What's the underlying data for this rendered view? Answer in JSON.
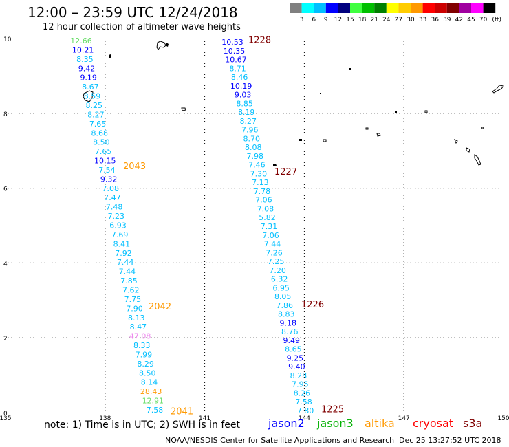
{
  "header": {
    "title": "12:00 – 23:59 UTC 12/24/2018",
    "subtitle": "12 hour collection of altimeter wave heights"
  },
  "color_scale": {
    "unit_label": "(ft)",
    "bins": [
      {
        "label": "",
        "color": "#808080"
      },
      {
        "label": "3",
        "color": "#00ffff"
      },
      {
        "label": "6",
        "color": "#00bfff"
      },
      {
        "label": "9",
        "color": "#0000ff"
      },
      {
        "label": "12",
        "color": "#00007f"
      },
      {
        "label": "15",
        "color": "#40ff40"
      },
      {
        "label": "18",
        "color": "#00c000"
      },
      {
        "label": "21",
        "color": "#008000"
      },
      {
        "label": "24",
        "color": "#ffff00"
      },
      {
        "label": "27",
        "color": "#ffcc00"
      },
      {
        "label": "30",
        "color": "#ff9900"
      },
      {
        "label": "33",
        "color": "#ff0000"
      },
      {
        "label": "36",
        "color": "#cc0000"
      },
      {
        "label": "39",
        "color": "#800000"
      },
      {
        "label": "42",
        "color": "#a000a0"
      },
      {
        "label": "45",
        "color": "#ff00ff"
      },
      {
        "label": "70",
        "color": "#000000"
      }
    ]
  },
  "axes": {
    "lon_ticks": [
      "135",
      "138",
      "141",
      "144",
      "147",
      "150"
    ],
    "lat_ticks": [
      "0",
      "2",
      "4",
      "6",
      "8",
      "10"
    ]
  },
  "tracks": [
    {
      "pass_times": [
        {
          "label": "2043",
          "lat": 6.6,
          "color": "#ff9900"
        },
        {
          "label": "2042",
          "lat": 2.85,
          "color": "#ff9900"
        },
        {
          "label": "2041",
          "lat": 0.05,
          "color": "#ff9900"
        }
      ],
      "points": [
        {
          "v": "12.66",
          "c": "#66dd66"
        },
        {
          "v": "10.21",
          "c": "#0000ff"
        },
        {
          "v": "8.35",
          "c": "#00bfff"
        },
        {
          "v": "9.42",
          "c": "#0000ff"
        },
        {
          "v": "9.19",
          "c": "#0000ff"
        },
        {
          "v": "8.67",
          "c": "#00bfff"
        },
        {
          "v": "8.59",
          "c": "#00bfff"
        },
        {
          "v": "8.25",
          "c": "#00bfff"
        },
        {
          "v": "8.27",
          "c": "#00bfff"
        },
        {
          "v": "7.65",
          "c": "#00bfff"
        },
        {
          "v": "8.68",
          "c": "#00bfff"
        },
        {
          "v": "8.50",
          "c": "#00bfff"
        },
        {
          "v": "7.65",
          "c": "#00bfff"
        },
        {
          "v": "10.15",
          "c": "#0000ff"
        },
        {
          "v": "7.54",
          "c": "#00bfff"
        },
        {
          "v": "9.32",
          "c": "#0000ff"
        },
        {
          "v": "7.08",
          "c": "#00bfff"
        },
        {
          "v": "7.47",
          "c": "#00bfff"
        },
        {
          "v": "7.48",
          "c": "#00bfff"
        },
        {
          "v": "7.23",
          "c": "#00bfff"
        },
        {
          "v": "6.93",
          "c": "#00bfff"
        },
        {
          "v": "7.69",
          "c": "#00bfff"
        },
        {
          "v": "8.41",
          "c": "#00bfff"
        },
        {
          "v": "7.92",
          "c": "#00bfff"
        },
        {
          "v": "7.44",
          "c": "#00bfff"
        },
        {
          "v": "7.44",
          "c": "#00bfff"
        },
        {
          "v": "7.85",
          "c": "#00bfff"
        },
        {
          "v": "7.62",
          "c": "#00bfff"
        },
        {
          "v": "7.75",
          "c": "#00bfff"
        },
        {
          "v": "7.90",
          "c": "#00bfff"
        },
        {
          "v": "8.13",
          "c": "#00bfff"
        },
        {
          "v": "8.47",
          "c": "#00bfff"
        },
        {
          "v": "47.08",
          "c": "#ee88ee"
        },
        {
          "v": "8.33",
          "c": "#00bfff"
        },
        {
          "v": "7.99",
          "c": "#00bfff"
        },
        {
          "v": "8.29",
          "c": "#00bfff"
        },
        {
          "v": "8.50",
          "c": "#00bfff"
        },
        {
          "v": "8.14",
          "c": "#00bfff"
        },
        {
          "v": "28.43",
          "c": "#ff9900"
        },
        {
          "v": "12.91",
          "c": "#66dd66"
        },
        {
          "v": "7.58",
          "c": "#00bfff"
        }
      ]
    },
    {
      "pass_times": [
        {
          "label": "1228",
          "lat": 9.97,
          "color": "#800000"
        },
        {
          "label": "1227",
          "lat": 6.45,
          "color": "#800000"
        },
        {
          "label": "1226",
          "lat": 2.9,
          "color": "#800000"
        },
        {
          "label": "1225",
          "lat": 0.1,
          "color": "#800000"
        }
      ],
      "points": [
        {
          "v": "10.53",
          "c": "#0000ff"
        },
        {
          "v": "10.35",
          "c": "#0000ff"
        },
        {
          "v": "10.67",
          "c": "#0000ff"
        },
        {
          "v": "8.71",
          "c": "#00bfff"
        },
        {
          "v": "8.46",
          "c": "#00bfff"
        },
        {
          "v": "10.19",
          "c": "#0000ff"
        },
        {
          "v": "9.03",
          "c": "#0000ff"
        },
        {
          "v": "8.85",
          "c": "#00bfff"
        },
        {
          "v": "8.19",
          "c": "#00bfff"
        },
        {
          "v": "8.27",
          "c": "#00bfff"
        },
        {
          "v": "7.96",
          "c": "#00bfff"
        },
        {
          "v": "8.70",
          "c": "#00bfff"
        },
        {
          "v": "8.08",
          "c": "#00bfff"
        },
        {
          "v": "7.98",
          "c": "#00bfff"
        },
        {
          "v": "7.46",
          "c": "#00bfff"
        },
        {
          "v": "7.30",
          "c": "#00bfff"
        },
        {
          "v": "7.13",
          "c": "#00bfff"
        },
        {
          "v": "7.78",
          "c": "#00bfff"
        },
        {
          "v": "7.06",
          "c": "#00bfff"
        },
        {
          "v": "7.08",
          "c": "#00bfff"
        },
        {
          "v": "5.82",
          "c": "#00bfff"
        },
        {
          "v": "7.31",
          "c": "#00bfff"
        },
        {
          "v": "7.06",
          "c": "#00bfff"
        },
        {
          "v": "7.44",
          "c": "#00bfff"
        },
        {
          "v": "7.26",
          "c": "#00bfff"
        },
        {
          "v": "7.25",
          "c": "#00bfff"
        },
        {
          "v": "7.20",
          "c": "#00bfff"
        },
        {
          "v": "6.32",
          "c": "#00bfff"
        },
        {
          "v": "6.95",
          "c": "#00bfff"
        },
        {
          "v": "8.05",
          "c": "#00bfff"
        },
        {
          "v": "7.86",
          "c": "#00bfff"
        },
        {
          "v": "8.83",
          "c": "#00bfff"
        },
        {
          "v": "9.18",
          "c": "#0000ff"
        },
        {
          "v": "8.76",
          "c": "#00bfff"
        },
        {
          "v": "9.49",
          "c": "#0000ff"
        },
        {
          "v": "8.65",
          "c": "#00bfff"
        },
        {
          "v": "9.25",
          "c": "#0000ff"
        },
        {
          "v": "9.40",
          "c": "#0000ff"
        },
        {
          "v": "8.28",
          "c": "#00bfff"
        },
        {
          "v": "7.95",
          "c": "#00bfff"
        },
        {
          "v": "8.26",
          "c": "#00bfff"
        },
        {
          "v": "7.58",
          "c": "#00bfff"
        },
        {
          "v": "7.80",
          "c": "#00bfff"
        }
      ]
    }
  ],
  "footer": {
    "note": "note: 1) Time is in UTC; 2) SWH is in feet",
    "credit": "NOAA/NESDIS Center for Satellite Applications and Research",
    "timestamp": "Dec 25 13:27:52 UTC 2018",
    "satellites": [
      {
        "name": "jason2",
        "color": "#0000ff"
      },
      {
        "name": "jason3",
        "color": "#00b000"
      },
      {
        "name": "altika",
        "color": "#ff9900"
      },
      {
        "name": "cryosat",
        "color": "#ff0000"
      },
      {
        "name": "s3a",
        "color": "#800000"
      }
    ]
  }
}
